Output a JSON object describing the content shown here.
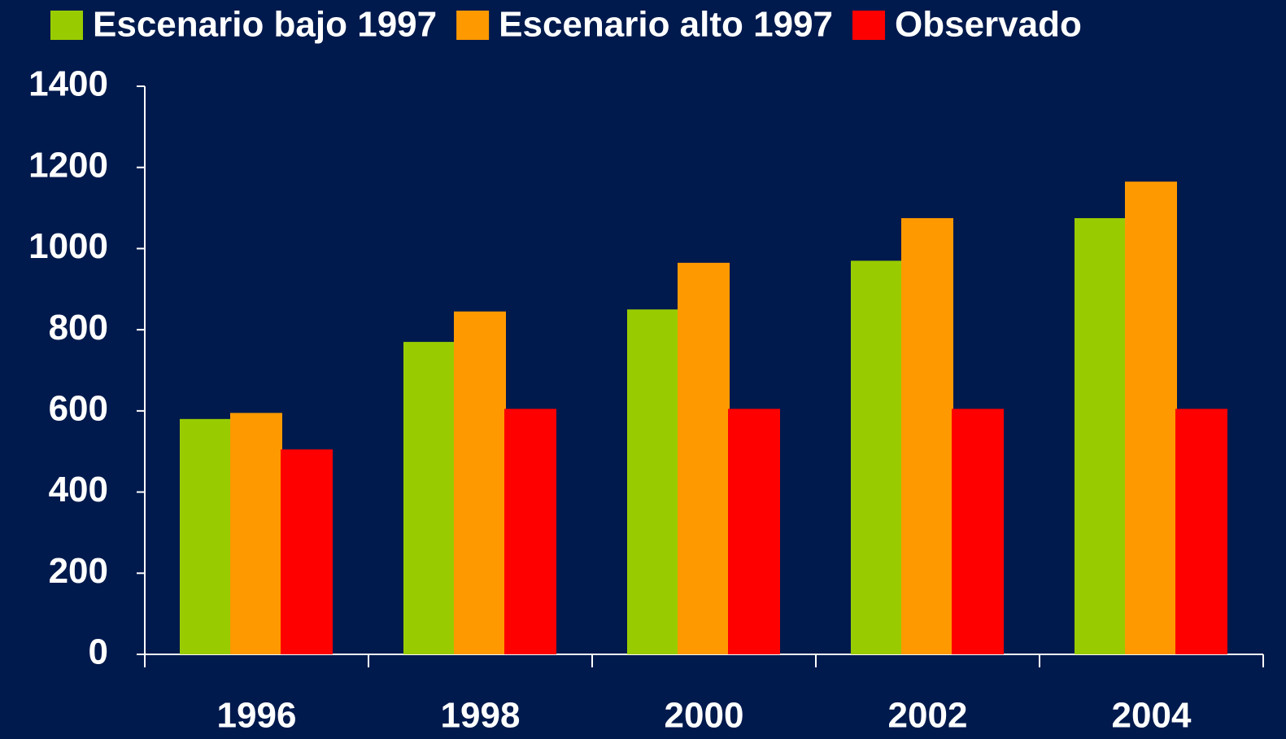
{
  "chart_data": {
    "type": "bar",
    "categories": [
      "1996",
      "1998",
      "2000",
      "2002",
      "2004"
    ],
    "series": [
      {
        "name": "Escenario bajo 1997",
        "color": "#99cc00",
        "values": [
          580,
          770,
          850,
          970,
          1075
        ]
      },
      {
        "name": "Escenario alto 1997",
        "color": "#ff9900",
        "values": [
          595,
          845,
          965,
          1075,
          1165
        ]
      },
      {
        "name": "Observado",
        "color": "#ff0000",
        "values": [
          505,
          605,
          605,
          605,
          605
        ]
      }
    ],
    "ylim": [
      0,
      1400
    ],
    "yticks": [
      0,
      200,
      400,
      600,
      800,
      1000,
      1200,
      1400
    ],
    "background": "#001a4d",
    "legend": "top"
  }
}
